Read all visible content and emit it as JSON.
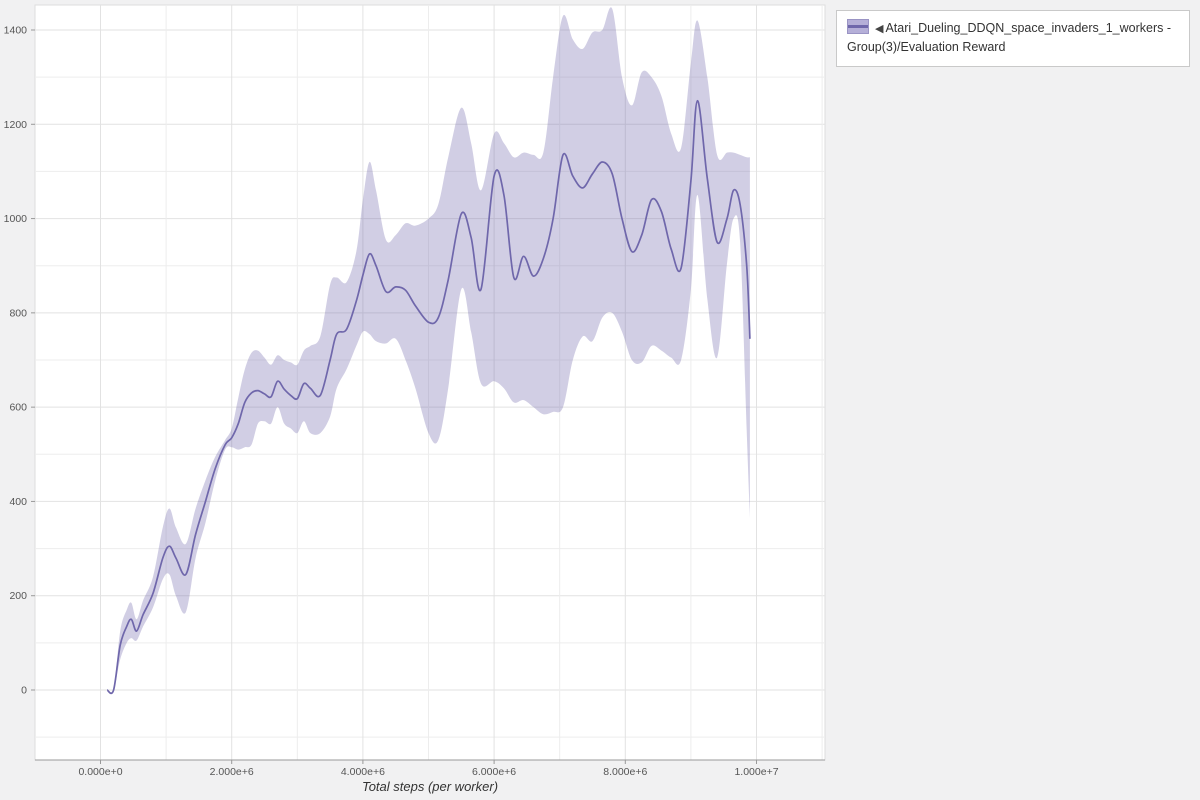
{
  "legend": {
    "collapse_icon": "◀",
    "label": "Atari_Dueling_DDQN_space_invaders_1_workers - Group(3)/Evaluation Reward"
  },
  "chart_data": {
    "type": "line",
    "title": "",
    "xlabel": "Total steps (per worker)",
    "ylabel": "",
    "grid": true,
    "legend_position": "top-right-outside",
    "xlim": [
      -1000000,
      11050000
    ],
    "ylim": [
      -150,
      1455
    ],
    "x_ticks": [
      {
        "value": 0,
        "label": "0.000e+0"
      },
      {
        "value": 2000000,
        "label": "2.000e+6"
      },
      {
        "value": 4000000,
        "label": "4.000e+6"
      },
      {
        "value": 6000000,
        "label": "6.000e+6"
      },
      {
        "value": 8000000,
        "label": "8.000e+6"
      },
      {
        "value": 10000000,
        "label": "1.000e+7"
      }
    ],
    "y_ticks": [
      {
        "value": 0,
        "label": "0"
      },
      {
        "value": 200,
        "label": "200"
      },
      {
        "value": 400,
        "label": "400"
      },
      {
        "value": 600,
        "label": "600"
      },
      {
        "value": 800,
        "label": "800"
      },
      {
        "value": 1000,
        "label": "1000"
      },
      {
        "value": 1200,
        "label": "1200"
      },
      {
        "value": 1400,
        "label": "1400"
      }
    ],
    "colors": {
      "line": "#6f67ab",
      "band": "rgba(111,103,171,0.32)",
      "grid_major": "#e2e2e2",
      "grid_minor": "#ededed",
      "axis": "#999999",
      "tick_text": "#555555",
      "plot_background": "#ffffff"
    },
    "series": [
      {
        "name": "Atari_Dueling_DDQN_space_invaders_1_workers - Group(3)/Evaluation Reward",
        "x": [
          100000,
          200000,
          300000,
          400000,
          470000,
          550000,
          650000,
          800000,
          950000,
          1050000,
          1150000,
          1300000,
          1450000,
          1600000,
          1750000,
          1900000,
          2000000,
          2100000,
          2200000,
          2300000,
          2400000,
          2500000,
          2600000,
          2700000,
          2800000,
          2900000,
          3000000,
          3100000,
          3200000,
          3350000,
          3500000,
          3600000,
          3750000,
          3900000,
          4000000,
          4100000,
          4200000,
          4350000,
          4500000,
          4650000,
          4800000,
          5000000,
          5150000,
          5300000,
          5500000,
          5650000,
          5800000,
          6000000,
          6150000,
          6300000,
          6450000,
          6600000,
          6750000,
          6900000,
          7050000,
          7200000,
          7350000,
          7500000,
          7650000,
          7800000,
          7950000,
          8100000,
          8250000,
          8400000,
          8550000,
          8700000,
          8850000,
          9000000,
          9100000,
          9250000,
          9400000,
          9550000,
          9650000,
          9750000,
          9850000,
          9900000
        ],
        "mean": [
          0,
          0,
          95,
          135,
          150,
          125,
          160,
          205,
          280,
          305,
          280,
          245,
          330,
          400,
          470,
          520,
          535,
          565,
          610,
          630,
          635,
          628,
          622,
          655,
          638,
          625,
          618,
          650,
          640,
          625,
          700,
          755,
          765,
          825,
          880,
          925,
          900,
          845,
          855,
          848,
          815,
          780,
          790,
          870,
          1010,
          960,
          850,
          1090,
          1050,
          875,
          920,
          878,
          915,
          1000,
          1135,
          1090,
          1065,
          1095,
          1120,
          1095,
          1000,
          930,
          965,
          1040,
          1015,
          935,
          895,
          1080,
          1250,
          1085,
          950,
          1000,
          1060,
          1030,
          900,
          745
        ],
        "band_low": [
          0,
          0,
          65,
          100,
          110,
          105,
          135,
          175,
          235,
          245,
          200,
          165,
          280,
          355,
          445,
          510,
          515,
          510,
          515,
          520,
          565,
          570,
          565,
          600,
          565,
          555,
          545,
          570,
          545,
          545,
          580,
          640,
          680,
          730,
          760,
          755,
          740,
          735,
          745,
          700,
          640,
          545,
          530,
          640,
          850,
          760,
          650,
          655,
          640,
          610,
          615,
          600,
          585,
          590,
          600,
          700,
          750,
          740,
          790,
          800,
          760,
          700,
          695,
          730,
          720,
          705,
          700,
          850,
          1050,
          830,
          705,
          905,
          1000,
          950,
          550,
          365
        ],
        "band_high": [
          0,
          0,
          125,
          170,
          185,
          150,
          190,
          240,
          345,
          385,
          345,
          310,
          385,
          445,
          495,
          530,
          555,
          620,
          680,
          715,
          720,
          705,
          690,
          710,
          700,
          695,
          690,
          720,
          730,
          750,
          860,
          875,
          865,
          930,
          1040,
          1120,
          1060,
          955,
          965,
          990,
          985,
          1000,
          1030,
          1130,
          1235,
          1160,
          1060,
          1180,
          1160,
          1130,
          1140,
          1135,
          1140,
          1300,
          1430,
          1380,
          1360,
          1395,
          1400,
          1445,
          1300,
          1240,
          1310,
          1300,
          1260,
          1180,
          1150,
          1330,
          1420,
          1300,
          1135,
          1140,
          1140,
          1135,
          1130,
          1130
        ]
      }
    ]
  }
}
